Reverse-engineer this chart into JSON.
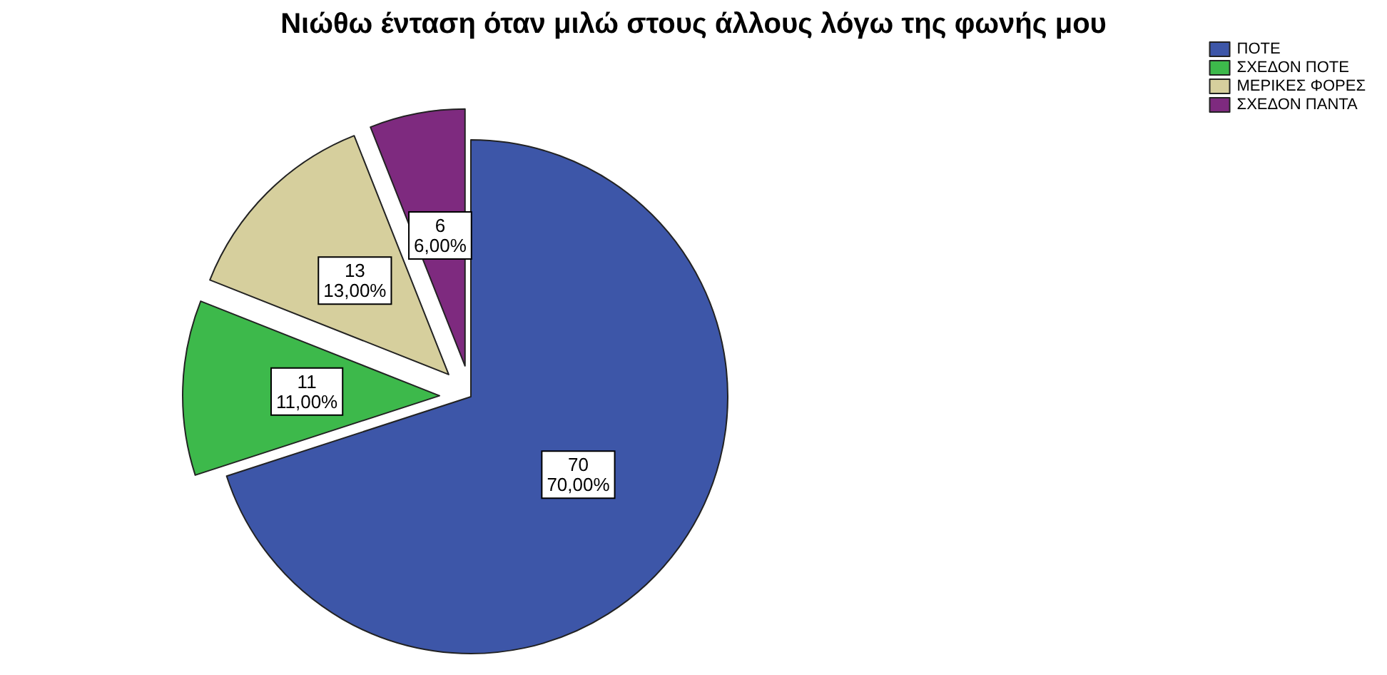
{
  "chart_data": {
    "type": "pie",
    "title": "Νιώθω ένταση όταν μιλώ στους άλλους λόγω της φωνής μου",
    "categories": [
      "ΠΟΤΕ",
      "ΣΧΕΔΟΝ ΠΟΤΕ",
      "ΜΕΡΙΚΕΣ ΦΟΡΕΣ",
      "ΣΧΕΔΟΝ ΠΑΝΤΑ"
    ],
    "values": [
      70,
      11,
      13,
      6
    ],
    "colors": [
      "#3d56a8",
      "#3db94b",
      "#d6cf9d",
      "#7e2a7f"
    ],
    "value_labels": [
      "70\n70,00%",
      "11\n11,00%",
      "13\n13,00%",
      "6\n6,00%"
    ],
    "legend": "top right"
  }
}
